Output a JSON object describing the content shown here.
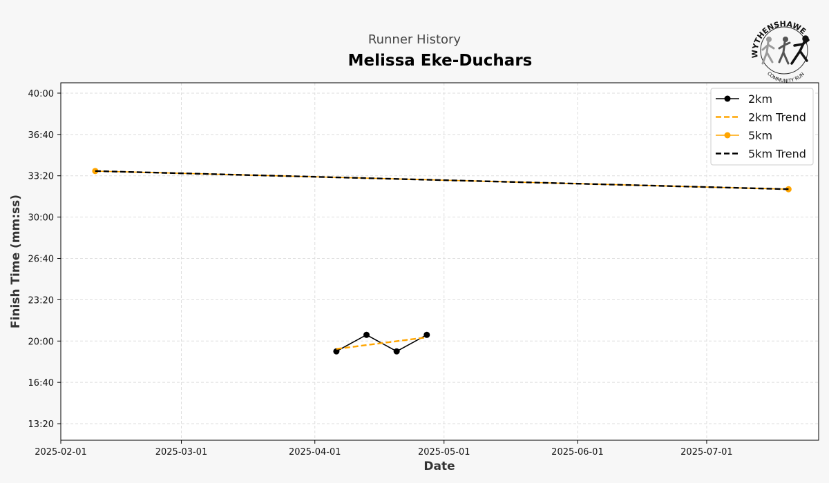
{
  "chart_data": {
    "type": "line",
    "subtitle": "Runner History",
    "title": "Melissa Eke-Duchars",
    "xlabel": "Date",
    "ylabel": "Finish Time (mm:ss)",
    "xlim": [
      "2025-02-01",
      "2025-07-27"
    ],
    "ylim": [
      "12:00",
      "40:50"
    ],
    "x_ticks": [
      "2025-02-01",
      "2025-03-01",
      "2025-04-01",
      "2025-05-01",
      "2025-06-01",
      "2025-07-01"
    ],
    "y_ticks": [
      "13:20",
      "16:40",
      "20:00",
      "23:20",
      "26:40",
      "30:00",
      "33:20",
      "36:40",
      "40:00"
    ],
    "grid": true,
    "legend_position": "top-right",
    "series": [
      {
        "name": "2km",
        "style": "solid-marker",
        "color": "#000000",
        "x": [
          "2025-04-06",
          "2025-04-13",
          "2025-04-20",
          "2025-04-27"
        ],
        "y": [
          "19:10",
          "20:30",
          "19:10",
          "20:30"
        ]
      },
      {
        "name": "2km Trend",
        "style": "dashed",
        "color": "#FFA500",
        "x": [
          "2025-04-06",
          "2025-04-27"
        ],
        "y": [
          "19:22",
          "20:18"
        ]
      },
      {
        "name": "5km",
        "style": "solid-marker",
        "color": "#FFA500",
        "x": [
          "2025-02-09",
          "2025-07-20"
        ],
        "y": [
          "33:43",
          "32:15"
        ]
      },
      {
        "name": "5km Trend",
        "style": "dashed",
        "color": "#000000",
        "x": [
          "2025-02-09",
          "2025-07-20"
        ],
        "y": [
          "33:43",
          "32:15"
        ]
      }
    ]
  },
  "logo": {
    "top_text": "WYTHENSHAWE",
    "bottom_text": "COMMUNITY RUN",
    "colors": [
      "#9a9a9a",
      "#555555",
      "#111111"
    ]
  }
}
